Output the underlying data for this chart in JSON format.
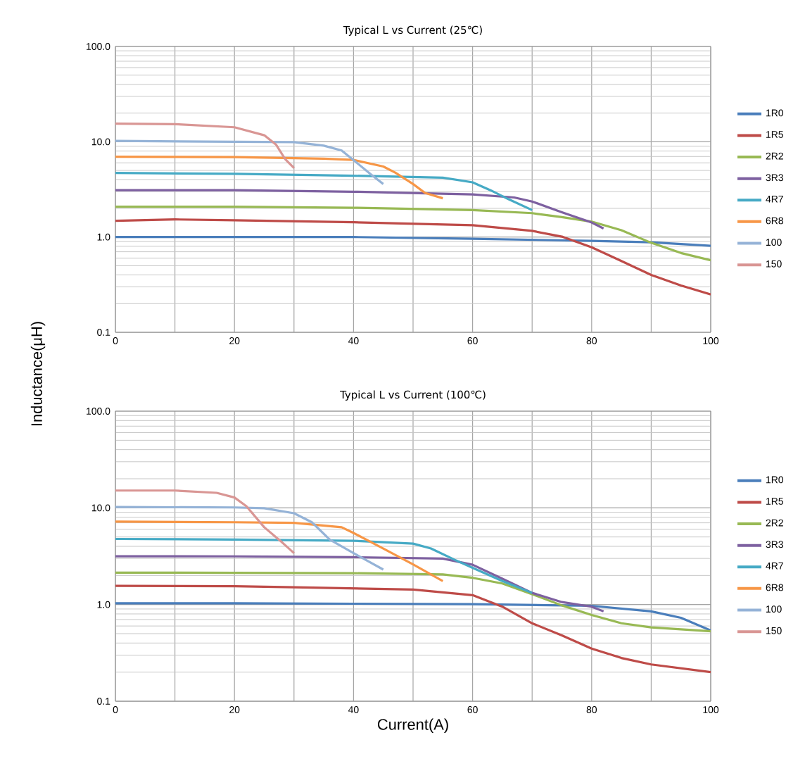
{
  "chart_data": [
    {
      "type": "line",
      "title": "Typical L vs Current (25℃)",
      "ylabel": "Inductance(μH)",
      "log": "y",
      "grid": true,
      "legend": "right",
      "xlim": [
        0,
        100
      ],
      "ylim": [
        0.1,
        100
      ],
      "xticks": [
        0,
        {
          "value": 10,
          "label": null
        },
        20,
        {
          "value": 30,
          "label": null
        },
        40,
        {
          "value": 50,
          "label": null
        },
        60,
        {
          "value": 70,
          "label": null
        },
        80,
        {
          "value": 90,
          "label": null
        },
        100
      ],
      "yticks": [
        {
          "value": 0.1,
          "label": "0.1"
        },
        {
          "value": 1,
          "label": "1.0"
        },
        {
          "value": 10,
          "label": "10.0"
        },
        {
          "value": 100,
          "label": "100.0"
        }
      ],
      "series": [
        {
          "name": "1R0",
          "color": "#4a7ebb",
          "x": [
            0,
            20,
            40,
            60,
            80,
            90,
            100
          ],
          "values": [
            1.0,
            1.0,
            1.0,
            0.96,
            0.91,
            0.88,
            0.81
          ]
        },
        {
          "name": "1R5",
          "color": "#be4b48",
          "x": [
            0,
            10,
            20,
            40,
            60,
            70,
            75,
            80,
            85,
            90,
            95,
            100
          ],
          "values": [
            1.48,
            1.53,
            1.5,
            1.43,
            1.33,
            1.16,
            1.01,
            0.78,
            0.56,
            0.4,
            0.31,
            0.25
          ]
        },
        {
          "name": "2R2",
          "color": "#98b954",
          "x": [
            0,
            20,
            40,
            60,
            70,
            75,
            80,
            85,
            90,
            95,
            100
          ],
          "values": [
            2.08,
            2.08,
            2.03,
            1.92,
            1.78,
            1.62,
            1.45,
            1.18,
            0.87,
            0.68,
            0.57
          ]
        },
        {
          "name": "3R3",
          "color": "#7d60a0",
          "x": [
            0,
            20,
            40,
            60,
            67,
            70,
            75,
            80,
            82
          ],
          "values": [
            3.1,
            3.1,
            2.99,
            2.8,
            2.6,
            2.36,
            1.82,
            1.42,
            1.23
          ]
        },
        {
          "name": "4R7",
          "color": "#46aac5",
          "x": [
            0,
            20,
            40,
            55,
            60,
            63,
            66,
            70
          ],
          "values": [
            4.7,
            4.6,
            4.4,
            4.2,
            3.75,
            3.1,
            2.5,
            1.92
          ]
        },
        {
          "name": "6R8",
          "color": "#f79646",
          "x": [
            0,
            20,
            35,
            40,
            45,
            47,
            50,
            52,
            55
          ],
          "values": [
            6.95,
            6.9,
            6.65,
            6.45,
            5.5,
            4.75,
            3.6,
            2.9,
            2.55
          ]
        },
        {
          "name": "100",
          "color": "#95b3d7",
          "x": [
            0,
            20,
            30,
            35,
            38,
            41,
            43,
            45
          ],
          "values": [
            10.2,
            10.0,
            9.9,
            9.1,
            8.1,
            5.7,
            4.5,
            3.6
          ]
        },
        {
          "name": "150",
          "color": "#d99694",
          "x": [
            0,
            10,
            20,
            25,
            27,
            28.5,
            30
          ],
          "values": [
            15.5,
            15.3,
            14.2,
            11.7,
            9.3,
            6.6,
            5.3
          ]
        }
      ]
    },
    {
      "type": "line",
      "title": "Typical L vs Current (100℃)",
      "xlabel": "Current(A)",
      "log": "y",
      "grid": true,
      "legend": "right",
      "xlim": [
        0,
        100
      ],
      "ylim": [
        0.1,
        100
      ],
      "xticks": [
        0,
        {
          "value": 10,
          "label": null
        },
        20,
        {
          "value": 30,
          "label": null
        },
        40,
        {
          "value": 50,
          "label": null
        },
        60,
        {
          "value": 70,
          "label": null
        },
        80,
        {
          "value": 90,
          "label": null
        },
        100
      ],
      "yticks": [
        {
          "value": 0.1,
          "label": "0.1"
        },
        {
          "value": 1,
          "label": "1.0"
        },
        {
          "value": 10,
          "label": "10.0"
        },
        {
          "value": 100,
          "label": "100.0"
        }
      ],
      "series": [
        {
          "name": "1R0",
          "color": "#4a7ebb",
          "x": [
            0,
            20,
            40,
            60,
            80,
            90,
            95,
            100
          ],
          "values": [
            1.03,
            1.03,
            1.02,
            1.01,
            0.97,
            0.85,
            0.73,
            0.54
          ]
        },
        {
          "name": "1R5",
          "color": "#be4b48",
          "x": [
            0,
            20,
            30,
            50,
            60,
            65,
            70,
            75,
            80,
            85,
            90,
            100
          ],
          "values": [
            1.56,
            1.55,
            1.51,
            1.43,
            1.25,
            0.95,
            0.64,
            0.48,
            0.35,
            0.28,
            0.24,
            0.2
          ]
        },
        {
          "name": "2R2",
          "color": "#98b954",
          "x": [
            0,
            20,
            40,
            55,
            60,
            65,
            70,
            75,
            80,
            85,
            90,
            100
          ],
          "values": [
            2.14,
            2.13,
            2.11,
            2.05,
            1.89,
            1.65,
            1.28,
            0.98,
            0.78,
            0.64,
            0.58,
            0.53
          ]
        },
        {
          "name": "3R3",
          "color": "#7d60a0",
          "x": [
            0,
            20,
            40,
            55,
            60,
            65,
            70,
            75,
            80,
            82
          ],
          "values": [
            3.16,
            3.15,
            3.09,
            2.99,
            2.58,
            1.85,
            1.32,
            1.06,
            0.95,
            0.85
          ]
        },
        {
          "name": "4R7",
          "color": "#46aac5",
          "x": [
            0,
            20,
            40,
            50,
            53,
            57,
            60,
            65,
            70
          ],
          "values": [
            4.77,
            4.7,
            4.57,
            4.27,
            3.8,
            2.9,
            2.4,
            1.75,
            1.32
          ]
        },
        {
          "name": "6R8",
          "color": "#f79646",
          "x": [
            0,
            20,
            30,
            38,
            40,
            45,
            50,
            55
          ],
          "values": [
            7.2,
            7.1,
            7.0,
            6.3,
            5.5,
            3.8,
            2.6,
            1.75
          ]
        },
        {
          "name": "100",
          "color": "#95b3d7",
          "x": [
            0,
            20,
            25,
            30,
            33,
            36,
            40,
            45
          ],
          "values": [
            10.2,
            10.1,
            9.9,
            8.8,
            7.1,
            4.7,
            3.4,
            2.3
          ]
        },
        {
          "name": "150",
          "color": "#d99694",
          "x": [
            0,
            10,
            17,
            20,
            22,
            25,
            28,
            30
          ],
          "values": [
            15.1,
            15.1,
            14.3,
            12.8,
            10.4,
            6.3,
            4.4,
            3.4
          ]
        }
      ]
    }
  ]
}
